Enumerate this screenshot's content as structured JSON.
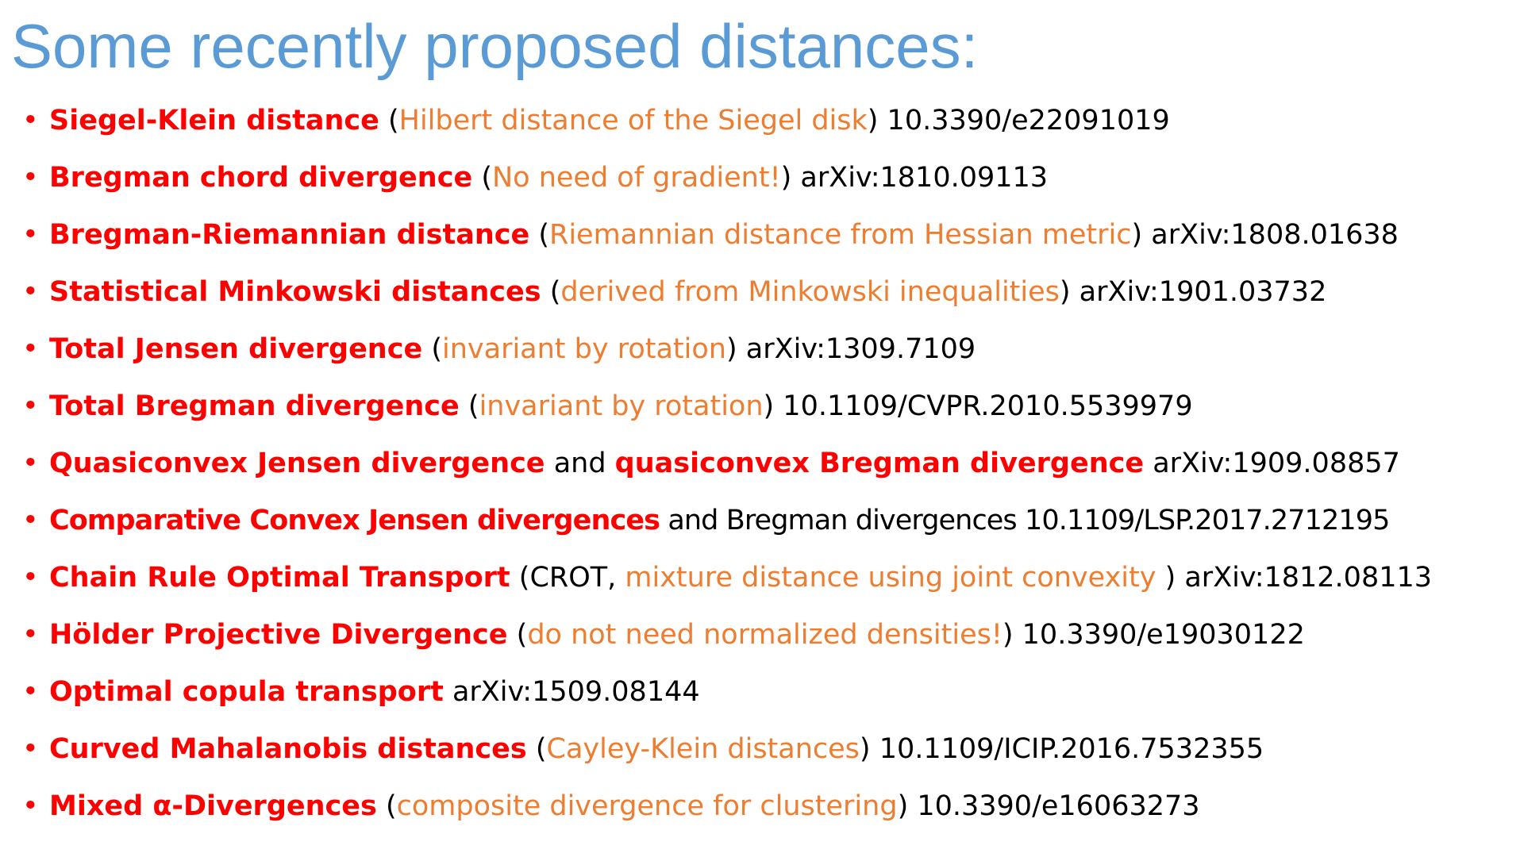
{
  "title": "Some recently proposed distances:",
  "bullet_glyph": "•",
  "colors": {
    "title": "#5b9bd5",
    "emphasis": "#ff0000",
    "comment": "#ed7d31",
    "text": "#000000"
  },
  "items": [
    {
      "segments": [
        {
          "style": "red",
          "text": "Siegel-Klein distance"
        },
        {
          "style": "plain",
          "text": "  ("
        },
        {
          "style": "orange",
          "text": "Hilbert distance of the Siegel disk"
        },
        {
          "style": "plain",
          "text": ") 10.3390/e22091019"
        }
      ]
    },
    {
      "segments": [
        {
          "style": "red",
          "text": "Bregman chord divergence"
        },
        {
          "style": "plain",
          "text": " ("
        },
        {
          "style": "orange",
          "text": "No need of gradient!"
        },
        {
          "style": "plain",
          "text": ") arXiv:1810.09113"
        }
      ]
    },
    {
      "segments": [
        {
          "style": "red",
          "text": "Bregman-Riemannian distance"
        },
        {
          "style": "plain",
          "text": " ("
        },
        {
          "style": "orange",
          "text": "Riemannian distance from Hessian metric"
        },
        {
          "style": "plain",
          "text": ") arXiv:1808.01638"
        }
      ]
    },
    {
      "segments": [
        {
          "style": "red",
          "text": "Statistical Minkowski distances"
        },
        {
          "style": "plain",
          "text": " ("
        },
        {
          "style": "orange",
          "text": "derived from Minkowski inequalities"
        },
        {
          "style": "plain",
          "text": ") arXiv:1901.03732"
        }
      ]
    },
    {
      "segments": [
        {
          "style": "red",
          "text": "Total Jensen divergence"
        },
        {
          "style": "plain",
          "text": " ("
        },
        {
          "style": "orange",
          "text": "invariant by rotation"
        },
        {
          "style": "plain",
          "text": ") arXiv:1309.7109"
        }
      ]
    },
    {
      "segments": [
        {
          "style": "red",
          "text": "Total Bregman divergence"
        },
        {
          "style": "plain",
          "text": " ("
        },
        {
          "style": "orange",
          "text": "invariant by rotation"
        },
        {
          "style": "plain",
          "text": ")  10.1109/CVPR.2010.5539979"
        }
      ]
    },
    {
      "segments": [
        {
          "style": "red",
          "text": "Quasiconvex Jensen divergence"
        },
        {
          "style": "plain",
          "text": " and "
        },
        {
          "style": "red",
          "text": "quasiconvex Bregman divergence"
        },
        {
          "style": "plain",
          "text": " arXiv:1909.08857"
        }
      ]
    },
    {
      "segments": [
        {
          "style": "red",
          "text": "Comparative Convex Jensen divergences"
        },
        {
          "style": "plain",
          "text": " and Bregman divergences 10.1109/LSP.2017.2712195"
        }
      ]
    },
    {
      "segments": [
        {
          "style": "red",
          "text": "Chain Rule Optimal Transport"
        },
        {
          "style": "plain",
          "text": " (CROT, "
        },
        {
          "style": "orange",
          "text": "mixture distance using joint convexity "
        },
        {
          "style": "plain",
          "text": ") arXiv:1812.08113"
        }
      ]
    },
    {
      "segments": [
        {
          "style": "red",
          "text": "Hölder Projective Divergence"
        },
        {
          "style": "plain",
          "text": "  ("
        },
        {
          "style": "orange",
          "text": "do not need normalized densities!"
        },
        {
          "style": "plain",
          "text": ") 10.3390/e19030122"
        }
      ]
    },
    {
      "segments": [
        {
          "style": "red",
          "text": "Optimal copula transport"
        },
        {
          "style": "plain",
          "text": "  arXiv:1509.08144"
        }
      ]
    },
    {
      "segments": [
        {
          "style": "red",
          "text": "Curved Mahalanobis distances"
        },
        {
          "style": "plain",
          "text": " ("
        },
        {
          "style": "orange",
          "text": "Cayley-Klein distances"
        },
        {
          "style": "plain",
          "text": ") 10.1109/ICIP.2016.7532355"
        }
      ]
    },
    {
      "segments": [
        {
          "style": "red",
          "text": "Mixed α-Divergences"
        },
        {
          "style": "plain",
          "text": " ("
        },
        {
          "style": "orange",
          "text": "composite divergence for clustering"
        },
        {
          "style": "plain",
          "text": ") 10.3390/e16063273"
        }
      ]
    }
  ]
}
